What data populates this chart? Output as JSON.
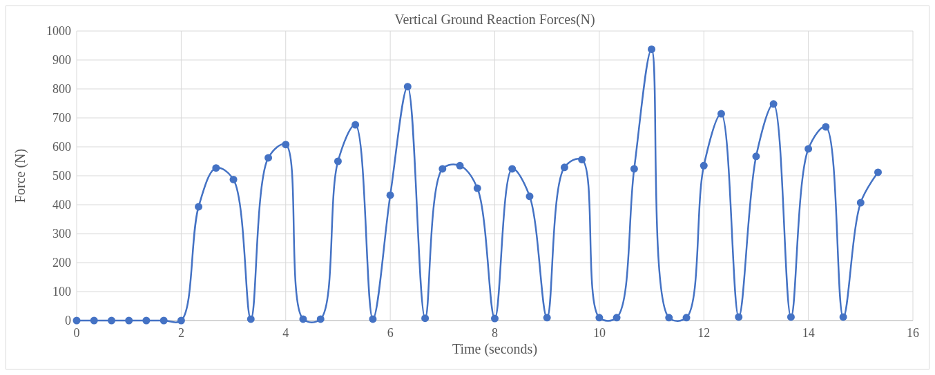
{
  "chart_data": {
    "type": "line",
    "title": "Vertical Ground Reaction Forces(N)",
    "xlabel": "Time (seconds)",
    "ylabel": "Force (N)",
    "x": [
      0,
      0.333,
      0.667,
      1,
      1.333,
      1.667,
      2,
      2.333,
      2.667,
      3,
      3.333,
      3.667,
      4,
      4.333,
      4.667,
      5,
      5.333,
      5.667,
      6,
      6.333,
      6.667,
      7,
      7.333,
      7.667,
      8,
      8.333,
      8.667,
      9,
      9.333,
      9.667,
      10,
      10.333,
      10.667,
      11,
      11.333,
      11.667,
      12,
      12.333,
      12.667,
      13,
      13.333,
      13.667,
      14,
      14.333,
      14.667,
      15,
      15.333
    ],
    "series": [
      {
        "color": "#4472c4",
        "values": [
          0,
          0,
          0,
          0,
          0,
          0,
          0,
          393,
          527,
          487,
          5,
          562,
          608,
          5,
          5,
          550,
          676,
          5,
          433,
          808,
          8,
          524,
          535,
          457,
          7,
          524,
          429,
          10,
          529,
          556,
          10,
          10,
          524,
          937,
          10,
          10,
          535,
          714,
          12,
          567,
          748,
          12,
          593,
          669,
          12,
          407,
          512
        ]
      }
    ],
    "xlim": [
      0,
      16
    ],
    "xticks": [
      0,
      2,
      4,
      6,
      8,
      10,
      12,
      14,
      16
    ],
    "ylim": [
      0,
      1000
    ],
    "yticks": [
      0,
      100,
      200,
      300,
      400,
      500,
      600,
      700,
      800,
      900,
      1000
    ],
    "grid": true,
    "marker": "circle",
    "line_style": "solid"
  }
}
